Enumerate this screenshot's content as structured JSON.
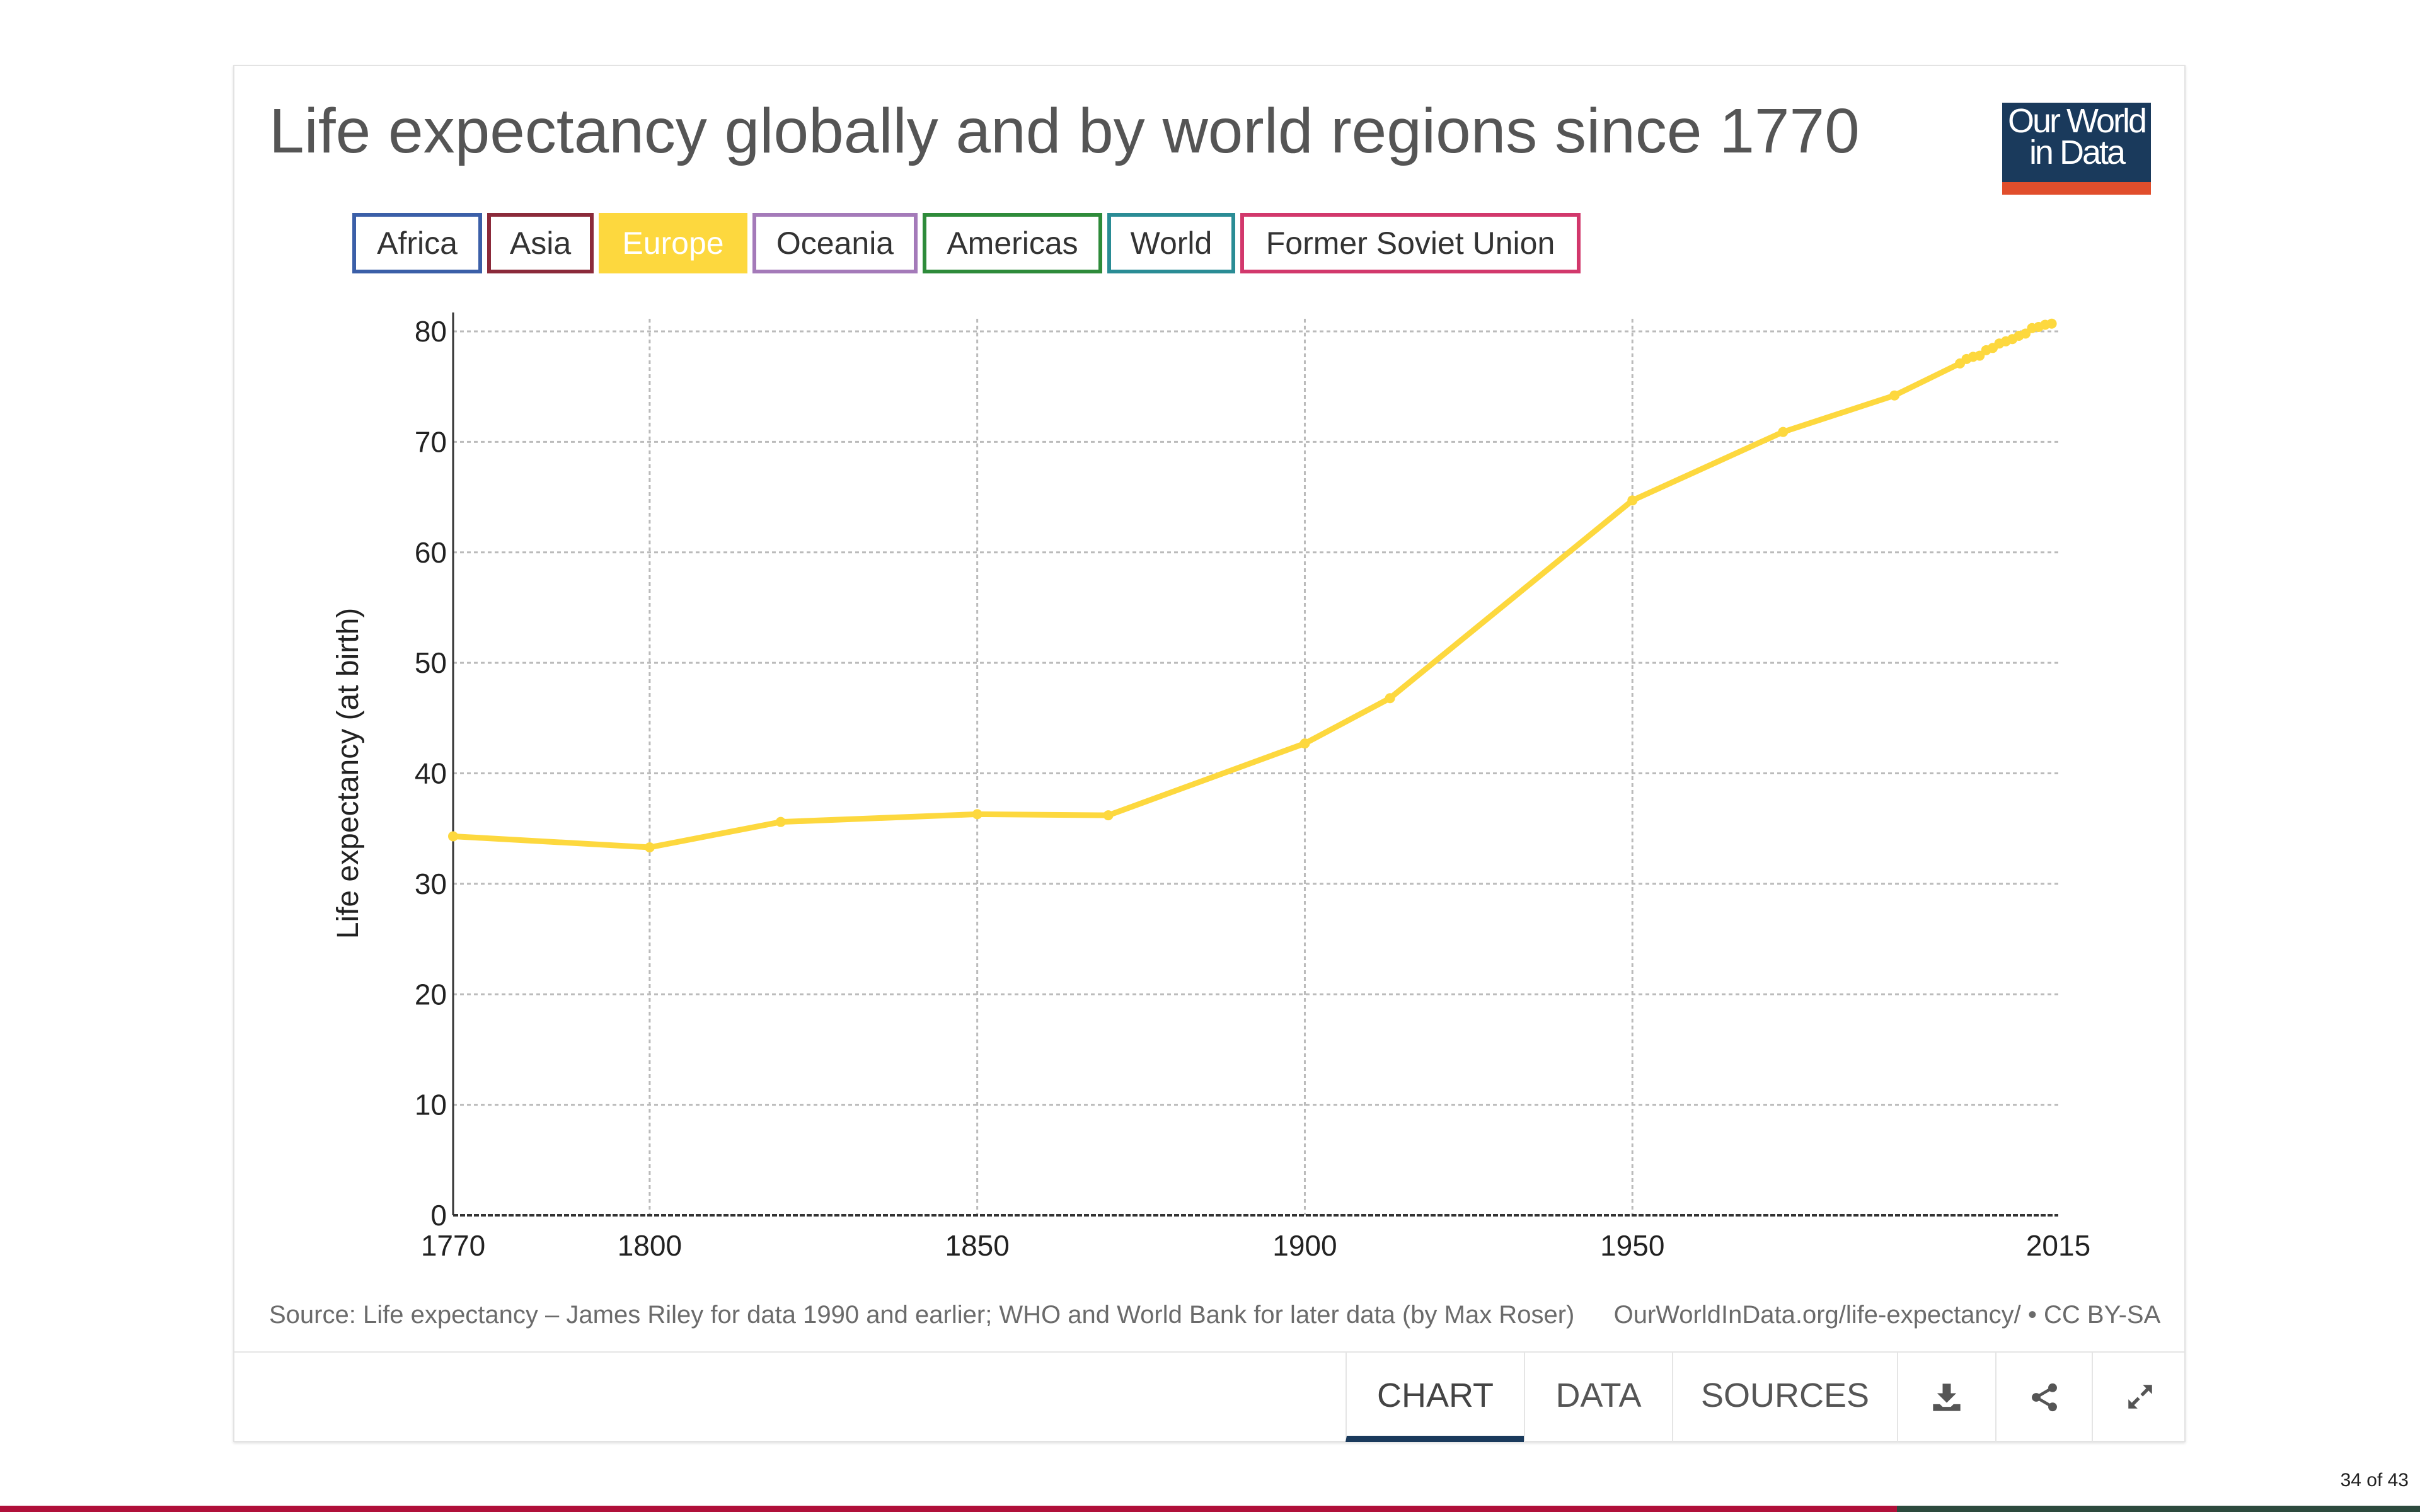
{
  "chart_data": {
    "type": "line",
    "title": "Life expectancy globally and by world regions since 1770",
    "ylabel": "Life expectancy (at birth)",
    "xlabel": "",
    "xlim": [
      1770,
      2015
    ],
    "ylim": [
      0,
      80
    ],
    "x_ticks": [
      "1770",
      "1800",
      "1850",
      "1900",
      "1950",
      "2015"
    ],
    "y_ticks": [
      "0",
      "10",
      "20",
      "30",
      "40",
      "50",
      "60",
      "70",
      "80"
    ],
    "grid": true,
    "legend_position": "top-left",
    "series": [
      {
        "name": "Europe",
        "color": "#fdd83e",
        "x": [
          1770,
          1800,
          1820,
          1850,
          1870,
          1900,
          1913,
          1950,
          1973,
          1990,
          2000,
          2001,
          2002,
          2003,
          2004,
          2005,
          2006,
          2007,
          2008,
          2009,
          2010,
          2011,
          2012,
          2013,
          2014
        ],
        "y": [
          34.3,
          33.3,
          35.6,
          36.3,
          36.2,
          42.7,
          46.8,
          64.7,
          70.9,
          74.2,
          77.1,
          77.5,
          77.7,
          77.8,
          78.3,
          78.5,
          78.9,
          79.1,
          79.3,
          79.6,
          79.8,
          80.3,
          80.4,
          80.6,
          80.7
        ]
      }
    ]
  },
  "legend": [
    {
      "label": "Africa",
      "color": "#3b5fa8",
      "active": false
    },
    {
      "label": "Asia",
      "color": "#8b2a3a",
      "active": false
    },
    {
      "label": "Europe",
      "color": "#fdd83e",
      "active": true
    },
    {
      "label": "Oceania",
      "color": "#a47ab9",
      "active": false
    },
    {
      "label": "Americas",
      "color": "#2e8b3a",
      "active": false
    },
    {
      "label": "World",
      "color": "#2a8c95",
      "active": false
    },
    {
      "label": "Former Soviet Union",
      "color": "#d2386c",
      "active": false
    }
  ],
  "logo": {
    "line1": "Our World",
    "line2": "in Data"
  },
  "source": "Source: Life expectancy – James Riley for data 1990 and earlier; WHO and World Bank for later data (by Max Roser)",
  "license": "OurWorldInData.org/life-expectancy/ • CC BY-SA",
  "tabs": [
    {
      "label": "CHART",
      "active": true
    },
    {
      "label": "DATA",
      "active": false
    },
    {
      "label": "SOURCES",
      "active": false
    }
  ],
  "icons": [
    "download-icon",
    "share-icon",
    "expand-icon"
  ],
  "page_counter": "34 of 43"
}
